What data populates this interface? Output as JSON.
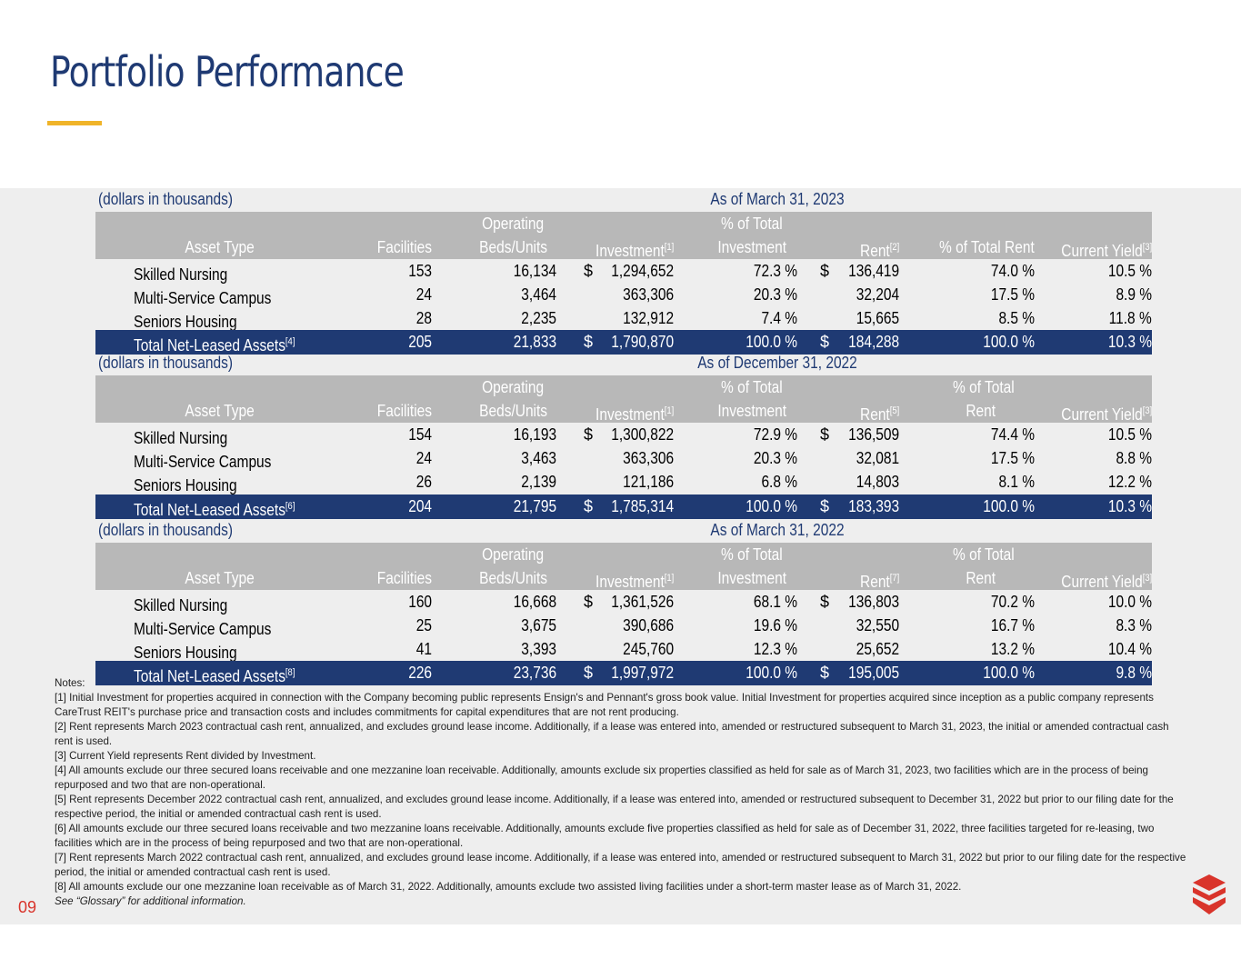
{
  "page": {
    "title": "Portfolio Performance",
    "page_number": "09"
  },
  "colors": {
    "brand_navy": "#1f3a73",
    "accent_gold": "#f0b429",
    "header_gray": "#b8b8b8",
    "logo_red": "#d9342b"
  },
  "tables": [
    {
      "unit_label": "(dollars in thousands)",
      "period": "As of March 31, 2023",
      "headers": {
        "asset_type": "Asset Type",
        "facilities": "Facilities",
        "beds_top": "Operating",
        "beds_bottom": "Beds/Units",
        "investment": "Investment",
        "investment_note": "[1]",
        "pct_inv_top": "% of Total",
        "pct_inv_bottom": "Investment",
        "rent": "Rent",
        "rent_note": "[2]",
        "pct_rent_top": "",
        "pct_rent_bottom": "% of Total Rent",
        "yield": "Current Yield",
        "yield_note": "[3]"
      },
      "rows": [
        {
          "type": "Skilled Nursing",
          "note": "",
          "facilities": "153",
          "beds": "16,134",
          "inv_dollar": "$",
          "investment": "1,294,652",
          "pct_inv": "72.3 %",
          "rent_dollar": "$",
          "rent": "136,419",
          "pct_rent": "74.0 %",
          "yield": "10.5 %"
        },
        {
          "type": "Multi-Service Campus",
          "note": "",
          "facilities": "24",
          "beds": "3,464",
          "inv_dollar": "",
          "investment": "363,306",
          "pct_inv": "20.3 %",
          "rent_dollar": "",
          "rent": "32,204",
          "pct_rent": "17.5 %",
          "yield": "8.9 %"
        },
        {
          "type": "Seniors Housing",
          "note": "",
          "facilities": "28",
          "beds": "2,235",
          "inv_dollar": "",
          "investment": "132,912",
          "pct_inv": "7.4 %",
          "rent_dollar": "",
          "rent": "15,665",
          "pct_rent": "8.5 %",
          "yield": "11.8 %"
        }
      ],
      "total": {
        "type": "Total Net-Leased Assets",
        "note": "[4]",
        "facilities": "205",
        "beds": "21,833",
        "inv_dollar": "$",
        "investment": "1,790,870",
        "pct_inv": "100.0 %",
        "rent_dollar": "$",
        "rent": "184,288",
        "pct_rent": "100.0 %",
        "yield": "10.3 %"
      }
    },
    {
      "unit_label": "(dollars in thousands)",
      "period": "As of December 31, 2022",
      "headers": {
        "asset_type": "Asset Type",
        "facilities": "Facilities",
        "beds_top": "Operating",
        "beds_bottom": "Beds/Units",
        "investment": "Investment",
        "investment_note": "[1]",
        "pct_inv_top": "% of Total",
        "pct_inv_bottom": "Investment",
        "rent": "Rent",
        "rent_note": "[5]",
        "pct_rent_top": "% of Total",
        "pct_rent_bottom": "Rent",
        "yield": "Current Yield",
        "yield_note": "[3]"
      },
      "rows": [
        {
          "type": "Skilled Nursing",
          "note": "",
          "facilities": "154",
          "beds": "16,193",
          "inv_dollar": "$",
          "investment": "1,300,822",
          "pct_inv": "72.9 %",
          "rent_dollar": "$",
          "rent": "136,509",
          "pct_rent": "74.4 %",
          "yield": "10.5 %"
        },
        {
          "type": "Multi-Service Campus",
          "note": "",
          "facilities": "24",
          "beds": "3,463",
          "inv_dollar": "",
          "investment": "363,306",
          "pct_inv": "20.3 %",
          "rent_dollar": "",
          "rent": "32,081",
          "pct_rent": "17.5 %",
          "yield": "8.8 %"
        },
        {
          "type": "Seniors Housing",
          "note": "",
          "facilities": "26",
          "beds": "2,139",
          "inv_dollar": "",
          "investment": "121,186",
          "pct_inv": "6.8 %",
          "rent_dollar": "",
          "rent": "14,803",
          "pct_rent": "8.1 %",
          "yield": "12.2 %"
        }
      ],
      "total": {
        "type": "Total Net-Leased Assets",
        "note": "[6]",
        "facilities": "204",
        "beds": "21,795",
        "inv_dollar": "$",
        "investment": "1,785,314",
        "pct_inv": "100.0 %",
        "rent_dollar": "$",
        "rent": "183,393",
        "pct_rent": "100.0 %",
        "yield": "10.3 %"
      }
    },
    {
      "unit_label": "(dollars in thousands)",
      "period": "As of March 31, 2022",
      "headers": {
        "asset_type": "Asset Type",
        "facilities": "Facilities",
        "beds_top": "Operating",
        "beds_bottom": "Beds/Units",
        "investment": "Investment",
        "investment_note": "[1]",
        "pct_inv_top": "% of Total",
        "pct_inv_bottom": "Investment",
        "rent": "Rent",
        "rent_note": "[7]",
        "pct_rent_top": "% of Total",
        "pct_rent_bottom": "Rent",
        "yield": "Current Yield",
        "yield_note": "[3]"
      },
      "rows": [
        {
          "type": "Skilled Nursing",
          "note": "",
          "facilities": "160",
          "beds": "16,668",
          "inv_dollar": "$",
          "investment": "1,361,526",
          "pct_inv": "68.1 %",
          "rent_dollar": "$",
          "rent": "136,803",
          "pct_rent": "70.2 %",
          "yield": "10.0 %"
        },
        {
          "type": "Multi-Service Campus",
          "note": "",
          "facilities": "25",
          "beds": "3,675",
          "inv_dollar": "",
          "investment": "390,686",
          "pct_inv": "19.6 %",
          "rent_dollar": "",
          "rent": "32,550",
          "pct_rent": "16.7 %",
          "yield": "8.3 %"
        },
        {
          "type": "Seniors Housing",
          "note": "",
          "facilities": "41",
          "beds": "3,393",
          "inv_dollar": "",
          "investment": "245,760",
          "pct_inv": "12.3 %",
          "rent_dollar": "",
          "rent": "25,652",
          "pct_rent": "13.2 %",
          "yield": "10.4 %"
        }
      ],
      "total": {
        "type": "Total Net-Leased Assets",
        "note": "[8]",
        "facilities": "226",
        "beds": "23,736",
        "inv_dollar": "$",
        "investment": "1,997,972",
        "pct_inv": "100.0 %",
        "rent_dollar": "$",
        "rent": "195,005",
        "pct_rent": "100.0 %",
        "yield": "9.8 %"
      }
    }
  ],
  "notes": {
    "heading": "Notes:",
    "items": [
      "[1] Initial Investment for properties acquired in connection with the Company becoming public represents Ensign's and Pennant's gross book value. Initial Investment for properties acquired since inception as a public company represents CareTrust REIT's purchase price and transaction costs and includes commitments for capital expenditures that are not rent producing.",
      "[2] Rent represents March 2023 contractual cash rent, annualized, and excludes ground lease income. Additionally, if a lease was entered into, amended or restructured subsequent to March 31, 2023, the initial or amended contractual cash rent is used.",
      "[3] Current Yield represents Rent divided by Investment.",
      "[4] All amounts exclude our three secured loans receivable and one mezzanine loan receivable. Additionally, amounts exclude six properties classified as held for sale as of March 31, 2023, two facilities which are in the process of being repurposed and two that are non-operational.",
      "[5] Rent represents December 2022 contractual cash rent, annualized, and excludes ground lease income. Additionally, if a lease was entered into, amended or restructured subsequent to December 31, 2022 but prior to our filing date for the respective period, the initial or amended contractual cash rent is used.",
      "[6] All amounts exclude our three secured loans receivable and two mezzanine loans receivable. Additionally, amounts exclude five properties classified as held for sale as of December 31, 2022, three facilities targeted for re-leasing, two facilities which are in the process of being repurposed and two that are non-operational.",
      "[7] Rent represents March 2022 contractual cash rent, annualized, and excludes ground lease income. Additionally, if a lease was entered into, amended or restructured subsequent to March 31, 2022 but prior to our filing date for the respective period, the initial or amended contractual cash rent is used.",
      "[8] All amounts exclude our one mezzanine loan receivable as of March 31, 2022. Additionally, amounts exclude two assisted living facilities under a short-term master lease as of March 31, 2022."
    ],
    "glossary": "See “Glossary” for additional information."
  }
}
